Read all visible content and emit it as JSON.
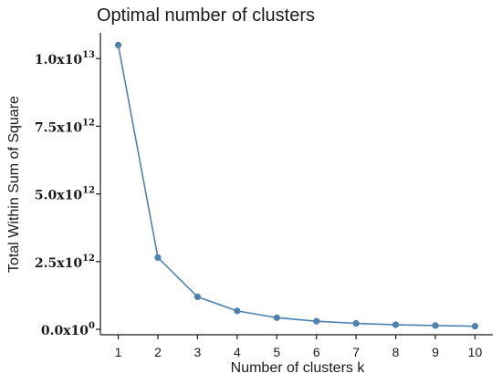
{
  "chart_data": {
    "type": "line",
    "title": "Optimal number of clusters",
    "xlabel": "Number of clusters k",
    "ylabel": "Total Within Sum of Square",
    "x": [
      1,
      2,
      3,
      4,
      5,
      6,
      7,
      8,
      9,
      10
    ],
    "y": [
      10500000000000,
      2650000000000,
      1200000000000,
      680000000000,
      430000000000,
      300000000000,
      220000000000,
      170000000000,
      140000000000,
      115000000000
    ],
    "xlim": [
      0.55,
      10.45
    ],
    "ylim": [
      -200000000000,
      10950000000000
    ],
    "x_ticks": [
      "1",
      "2",
      "3",
      "4",
      "5",
      "6",
      "7",
      "8",
      "9",
      "10"
    ],
    "y_ticks": [
      {
        "value": 0,
        "mantissa": "0.0x10",
        "exponent": "0"
      },
      {
        "value": 2500000000000,
        "mantissa": "2.5x10",
        "exponent": "12"
      },
      {
        "value": 5000000000000,
        "mantissa": "5.0x10",
        "exponent": "12"
      },
      {
        "value": 7500000000000,
        "mantissa": "7.5x10",
        "exponent": "12"
      },
      {
        "value": 10000000000000,
        "mantissa": "1.0x10",
        "exponent": "13"
      }
    ],
    "grid": false,
    "colors": {
      "series": "#4f81b0",
      "axis": "#1a1a1a"
    }
  }
}
